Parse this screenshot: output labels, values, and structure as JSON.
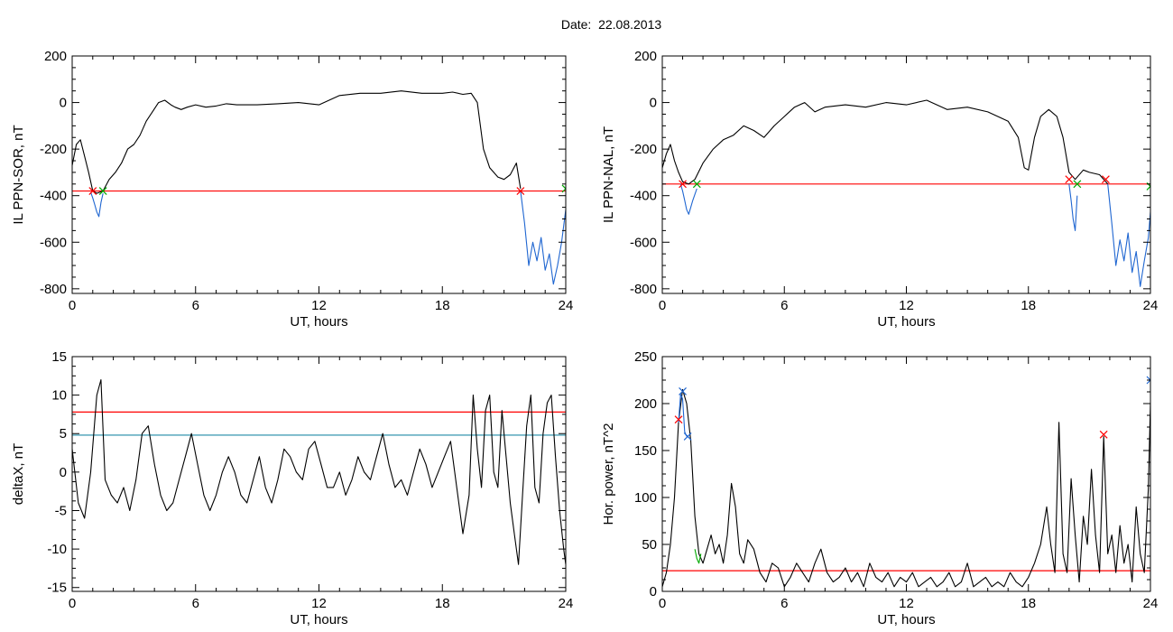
{
  "figure": {
    "title": "Date:  22.08.2013"
  },
  "chart_data": [
    {
      "type": "line",
      "xlabel": "UT, hours",
      "ylabel": "IL PPN-SOR, nT",
      "xlim": [
        0,
        24
      ],
      "ylim": [
        -820,
        200
      ],
      "xticks": [
        0,
        6,
        12,
        18,
        24
      ],
      "yticks": [
        200,
        0,
        -200,
        -400,
        -600,
        -800
      ],
      "threshold": {
        "y": -380,
        "color": "#ff0000"
      },
      "series": [
        {
          "color": "#000000",
          "x": [
            0,
            0.2,
            0.4,
            0.6,
            0.8,
            1.0,
            1.2,
            1.5,
            1.8,
            2.1,
            2.4,
            2.7,
            3.0,
            3.3,
            3.6,
            3.9,
            4.2,
            4.5,
            4.8,
            5.0,
            5.3,
            5.6,
            6.0,
            6.5,
            7.0,
            7.5,
            8,
            9,
            10,
            11,
            12,
            13,
            14,
            15,
            16,
            17,
            18,
            18.5,
            19,
            19.4,
            19.7,
            20.0,
            20.3,
            20.7,
            21.0,
            21.3,
            21.6,
            21.8
          ],
          "y": [
            -270,
            -180,
            -160,
            -230,
            -300,
            -380,
            -390,
            -380,
            -330,
            -300,
            -260,
            -200,
            -180,
            -140,
            -80,
            -40,
            0,
            10,
            -10,
            -20,
            -30,
            -20,
            -10,
            -20,
            -15,
            -5,
            -10,
            -10,
            -5,
            0,
            -10,
            30,
            40,
            40,
            50,
            40,
            40,
            45,
            35,
            40,
            0,
            -200,
            -280,
            -320,
            -330,
            -310,
            -260,
            -370
          ]
        },
        {
          "color": "#1f66d1",
          "x": [
            0.9,
            1.0,
            1.1,
            1.2,
            1.3,
            1.4,
            1.5
          ],
          "y": [
            -385,
            -410,
            -440,
            -470,
            -490,
            -430,
            -390
          ]
        },
        {
          "color": "#1f66d1",
          "x": [
            21.8,
            22.0,
            22.2,
            22.4,
            22.6,
            22.8,
            23.0,
            23.2,
            23.4,
            23.6,
            23.8,
            24.0
          ],
          "y": [
            -380,
            -520,
            -700,
            -600,
            -680,
            -580,
            -720,
            -650,
            -780,
            -700,
            -600,
            -460
          ]
        }
      ],
      "markers": [
        {
          "x": 1.0,
          "y": -380,
          "color": "#ff0000"
        },
        {
          "x": 1.5,
          "y": -380,
          "color": "#00aa00"
        },
        {
          "x": 21.8,
          "y": -380,
          "color": "#ff0000"
        },
        {
          "x": 24.0,
          "y": -370,
          "color": "#00aa00"
        }
      ]
    },
    {
      "type": "line",
      "xlabel": "UT, hours",
      "ylabel": "IL PPN-NAL, nT",
      "xlim": [
        0,
        24
      ],
      "ylim": [
        -820,
        200
      ],
      "xticks": [
        0,
        6,
        12,
        18,
        24
      ],
      "yticks": [
        200,
        0,
        -200,
        -400,
        -600,
        -800
      ],
      "threshold": {
        "y": -350,
        "color": "#ff0000"
      },
      "series": [
        {
          "color": "#000000",
          "x": [
            0,
            0.2,
            0.4,
            0.6,
            0.8,
            1.0,
            1.3,
            1.6,
            2.0,
            2.5,
            3.0,
            3.5,
            4.0,
            4.5,
            5.0,
            5.5,
            6.0,
            6.5,
            7.0,
            7.5,
            8,
            9,
            10,
            11,
            12,
            13,
            14,
            15,
            16,
            17,
            17.5,
            17.8,
            18.0,
            18.3,
            18.6,
            19,
            19.4,
            19.7,
            20.0,
            20.3,
            20.7,
            21.0,
            21.5,
            21.9
          ],
          "y": [
            -280,
            -220,
            -180,
            -250,
            -300,
            -340,
            -350,
            -330,
            -260,
            -200,
            -160,
            -140,
            -100,
            -120,
            -150,
            -100,
            -60,
            -20,
            0,
            -40,
            -20,
            -10,
            -20,
            0,
            -10,
            10,
            -30,
            -20,
            -40,
            -80,
            -150,
            -280,
            -290,
            -150,
            -60,
            -30,
            -60,
            -150,
            -300,
            -330,
            -290,
            -300,
            -310,
            -350
          ]
        },
        {
          "color": "#1f66d1",
          "x": [
            0.9,
            1.0,
            1.1,
            1.2,
            1.3,
            1.5,
            1.7
          ],
          "y": [
            -350,
            -380,
            -420,
            -460,
            -480,
            -420,
            -370
          ]
        },
        {
          "color": "#1f66d1",
          "x": [
            20.0,
            20.1,
            20.2,
            20.3,
            20.4
          ],
          "y": [
            -350,
            -420,
            -500,
            -550,
            -400
          ]
        },
        {
          "color": "#1f66d1",
          "x": [
            21.9,
            22.1,
            22.3,
            22.5,
            22.7,
            22.9,
            23.1,
            23.3,
            23.5,
            23.7,
            23.9,
            24.0
          ],
          "y": [
            -350,
            -520,
            -700,
            -590,
            -680,
            -560,
            -730,
            -640,
            -790,
            -680,
            -580,
            -470
          ]
        }
      ],
      "markers": [
        {
          "x": 1.0,
          "y": -350,
          "color": "#ff0000"
        },
        {
          "x": 1.7,
          "y": -350,
          "color": "#00aa00"
        },
        {
          "x": 20.0,
          "y": -330,
          "color": "#ff0000"
        },
        {
          "x": 20.4,
          "y": -350,
          "color": "#00aa00"
        },
        {
          "x": 21.8,
          "y": -330,
          "color": "#ff0000"
        },
        {
          "x": 24.0,
          "y": -360,
          "color": "#00aa00"
        }
      ]
    },
    {
      "type": "line",
      "xlabel": "UT, hours",
      "ylabel": "deltaX, nT",
      "xlim": [
        0,
        24
      ],
      "ylim": [
        -15.5,
        15
      ],
      "xticks": [
        0,
        6,
        12,
        18,
        24
      ],
      "yticks": [
        15,
        10,
        5,
        0,
        -5,
        -10,
        -15
      ],
      "hlines": [
        {
          "y": 7.8,
          "color": "#ff0000"
        },
        {
          "y": 4.8,
          "color": "#1f8aa6"
        }
      ],
      "series": [
        {
          "color": "#000000",
          "x": [
            0,
            0.3,
            0.6,
            0.9,
            1.2,
            1.4,
            1.6,
            1.9,
            2.2,
            2.5,
            2.8,
            3.1,
            3.4,
            3.7,
            4.0,
            4.3,
            4.6,
            4.9,
            5.2,
            5.5,
            5.8,
            6.1,
            6.4,
            6.7,
            7.0,
            7.3,
            7.6,
            7.9,
            8.2,
            8.5,
            8.8,
            9.1,
            9.4,
            9.7,
            10.0,
            10.3,
            10.6,
            10.9,
            11.2,
            11.5,
            11.8,
            12.1,
            12.4,
            12.7,
            13.0,
            13.3,
            13.6,
            13.9,
            14.2,
            14.5,
            14.8,
            15.1,
            15.4,
            15.7,
            16.0,
            16.3,
            16.6,
            16.9,
            17.2,
            17.5,
            17.8,
            18.1,
            18.4,
            18.7,
            19.0,
            19.3,
            19.5,
            19.7,
            19.9,
            20.1,
            20.3,
            20.5,
            20.7,
            20.9,
            21.1,
            21.3,
            21.5,
            21.7,
            21.9,
            22.1,
            22.3,
            22.5,
            22.7,
            22.9,
            23.1,
            23.3,
            23.5,
            23.7,
            23.9,
            24.0
          ],
          "y": [
            3,
            -4,
            -6,
            0,
            10,
            12,
            -1,
            -3,
            -4,
            -2,
            -5,
            -1,
            5,
            6,
            1,
            -3,
            -5,
            -4,
            -1,
            2,
            5,
            1,
            -3,
            -5,
            -3,
            0,
            2,
            0,
            -3,
            -4,
            -1,
            2,
            -2,
            -4,
            -1,
            3,
            2,
            0,
            -1,
            3,
            4,
            1,
            -2,
            -2,
            0,
            -3,
            -1,
            2,
            0,
            -1,
            2,
            5,
            1,
            -2,
            -1,
            -3,
            0,
            3,
            1,
            -2,
            0,
            2,
            4,
            -2,
            -8,
            -3,
            10,
            3,
            -2,
            8,
            10,
            0,
            -2,
            8,
            2,
            -4,
            -8,
            -12,
            -3,
            6,
            10,
            -2,
            -4,
            5,
            9,
            10,
            2,
            -5,
            -10,
            -12
          ]
        }
      ]
    },
    {
      "type": "line",
      "xlabel": "UT, hours",
      "ylabel": "Hor. power, nT^2",
      "xlim": [
        0,
        24
      ],
      "ylim": [
        0,
        250
      ],
      "xticks": [
        0,
        6,
        12,
        18,
        24
      ],
      "yticks": [
        250,
        200,
        150,
        100,
        50,
        0
      ],
      "threshold": {
        "y": 22,
        "color": "#ff0000"
      },
      "series": [
        {
          "color": "#000000",
          "x": [
            0,
            0.2,
            0.4,
            0.6,
            0.8,
            1.0,
            1.2,
            1.4,
            1.6,
            1.8,
            2.0,
            2.2,
            2.4,
            2.6,
            2.8,
            3.0,
            3.2,
            3.4,
            3.6,
            3.8,
            4.0,
            4.2,
            4.5,
            4.8,
            5.1,
            5.4,
            5.7,
            6.0,
            6.3,
            6.6,
            6.9,
            7.2,
            7.5,
            7.8,
            8.1,
            8.4,
            8.7,
            9.0,
            9.3,
            9.6,
            9.9,
            10.2,
            10.5,
            10.8,
            11.1,
            11.4,
            11.7,
            12.0,
            12.3,
            12.6,
            12.9,
            13.2,
            13.5,
            13.8,
            14.1,
            14.4,
            14.7,
            15.0,
            15.3,
            15.6,
            15.9,
            16.2,
            16.5,
            16.8,
            17.1,
            17.4,
            17.7,
            18.0,
            18.3,
            18.6,
            18.9,
            19.1,
            19.3,
            19.5,
            19.7,
            19.9,
            20.1,
            20.3,
            20.5,
            20.7,
            20.9,
            21.1,
            21.3,
            21.5,
            21.7,
            21.9,
            22.1,
            22.3,
            22.5,
            22.7,
            22.9,
            23.1,
            23.3,
            23.5,
            23.7,
            23.9,
            24.0
          ],
          "y": [
            5,
            20,
            50,
            100,
            180,
            215,
            200,
            160,
            80,
            40,
            30,
            45,
            60,
            40,
            50,
            30,
            60,
            115,
            90,
            40,
            30,
            55,
            45,
            20,
            10,
            30,
            25,
            5,
            15,
            30,
            20,
            10,
            30,
            45,
            20,
            10,
            15,
            25,
            10,
            20,
            5,
            30,
            15,
            10,
            20,
            5,
            15,
            10,
            20,
            5,
            10,
            15,
            5,
            10,
            20,
            5,
            10,
            30,
            5,
            10,
            15,
            5,
            10,
            5,
            20,
            10,
            5,
            15,
            30,
            50,
            90,
            50,
            20,
            180,
            40,
            20,
            120,
            60,
            10,
            80,
            50,
            130,
            60,
            20,
            165,
            40,
            60,
            20,
            70,
            30,
            50,
            10,
            90,
            40,
            20,
            110,
            200
          ]
        },
        {
          "color": "#1f66d1",
          "x": [
            0.8,
            0.9,
            1.0,
            1.1,
            1.2
          ],
          "y": [
            180,
            210,
            205,
            170,
            165
          ]
        },
        {
          "color": "#00aa00",
          "x": [
            1.6,
            1.7,
            1.8,
            1.9
          ],
          "y": [
            45,
            35,
            30,
            40
          ]
        }
      ],
      "markers": [
        {
          "x": 0.8,
          "y": 183,
          "color": "#ff0000"
        },
        {
          "x": 1.0,
          "y": 213,
          "color": "#1f66d1"
        },
        {
          "x": 1.25,
          "y": 165,
          "color": "#1f66d1"
        },
        {
          "x": 21.7,
          "y": 167,
          "color": "#ff0000"
        },
        {
          "x": 24.0,
          "y": 225,
          "color": "#1f66d1"
        }
      ]
    }
  ]
}
